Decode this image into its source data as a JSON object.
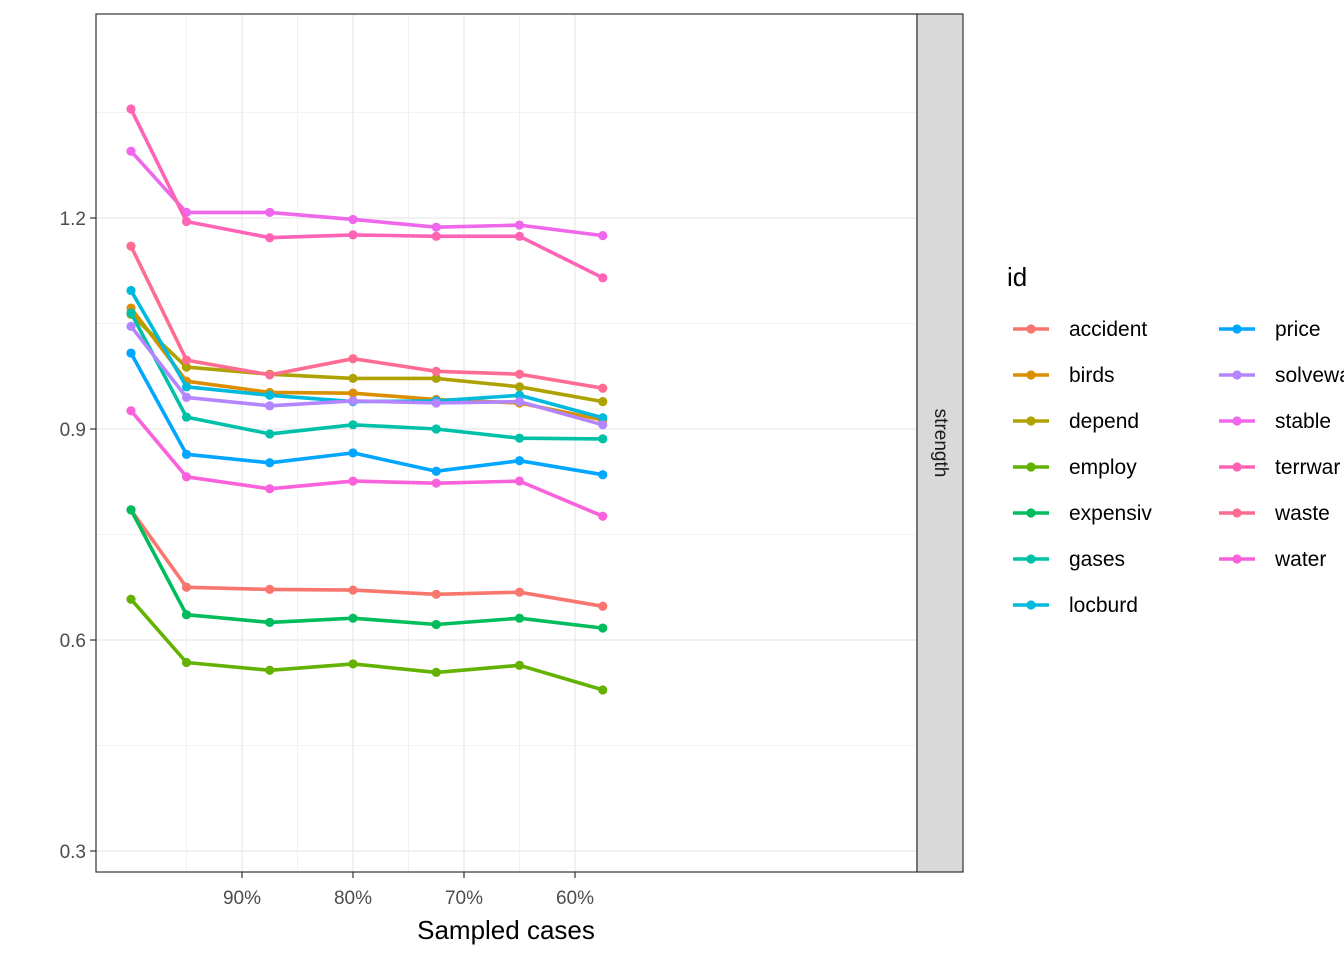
{
  "chart_data": {
    "type": "line",
    "title": "",
    "xlabel": "Sampled cases",
    "ylabel": "",
    "facet_label": "strength",
    "x_ticks": [
      {
        "value": 0.9,
        "label": "90%"
      },
      {
        "value": 0.8,
        "label": "80%"
      },
      {
        "value": 0.7,
        "label": "70%"
      },
      {
        "value": 0.6,
        "label": "60%"
      }
    ],
    "y_ticks": [
      {
        "value": 0.3,
        "label": "0.3"
      },
      {
        "value": 0.6,
        "label": "0.6"
      },
      {
        "value": 0.9,
        "label": "0.9"
      },
      {
        "value": 1.2,
        "label": "1.2"
      }
    ],
    "xlim": [
      0.55,
      1.0
    ],
    "ylim": [
      0.26,
      1.5
    ],
    "x_reversed": true,
    "grid": true,
    "legend_position": "right",
    "legend_title": "id",
    "x": [
      1.0,
      0.95,
      0.875,
      0.8,
      0.725,
      0.65,
      0.575
    ],
    "series": [
      {
        "name": "accident",
        "color": "#F8766D",
        "values": [
          0.785,
          0.675,
          0.672,
          0.671,
          0.665,
          0.668,
          0.648
        ]
      },
      {
        "name": "birds",
        "color": "#DB8E00",
        "values": [
          1.072,
          0.968,
          0.952,
          0.951,
          0.942,
          0.937,
          0.913
        ]
      },
      {
        "name": "depend",
        "color": "#AEA200",
        "values": [
          1.063,
          0.988,
          0.978,
          0.972,
          0.972,
          0.96,
          0.939
        ]
      },
      {
        "name": "employ",
        "color": "#64B200",
        "values": [
          0.658,
          0.568,
          0.557,
          0.566,
          0.554,
          0.564,
          0.529
        ]
      },
      {
        "name": "expensiv",
        "color": "#00BD5C",
        "values": [
          0.785,
          0.636,
          0.625,
          0.631,
          0.622,
          0.631,
          0.617
        ]
      },
      {
        "name": "gases",
        "color": "#00C1A7",
        "values": [
          1.065,
          0.917,
          0.893,
          0.906,
          0.9,
          0.887,
          0.886
        ]
      },
      {
        "name": "locburd",
        "color": "#00BADE",
        "values": [
          1.097,
          0.96,
          0.948,
          0.939,
          0.94,
          0.948,
          0.916
        ]
      },
      {
        "name": "price",
        "color": "#00A6FF",
        "values": [
          1.008,
          0.864,
          0.852,
          0.866,
          0.84,
          0.855,
          0.835
        ]
      },
      {
        "name": "solvewa",
        "color": "#B385FF",
        "values": [
          1.046,
          0.945,
          0.933,
          0.94,
          0.937,
          0.939,
          0.906
        ]
      },
      {
        "name": "stable",
        "color": "#EF67EB",
        "values": [
          1.295,
          1.208,
          1.208,
          1.198,
          1.187,
          1.19,
          1.175
        ]
      },
      {
        "name": "terrwar",
        "color": "#FF63B6",
        "values": [
          1.355,
          1.195,
          1.172,
          1.176,
          1.174,
          1.174,
          1.115
        ]
      },
      {
        "name": "waste",
        "color": "#FF6C91",
        "values": [
          1.16,
          0.998,
          0.977,
          1.0,
          0.982,
          0.978,
          0.958
        ]
      },
      {
        "name": "water",
        "color": "#FA62DB",
        "values": [
          0.926,
          0.832,
          0.815,
          0.826,
          0.823,
          0.826,
          0.776
        ]
      }
    ]
  }
}
